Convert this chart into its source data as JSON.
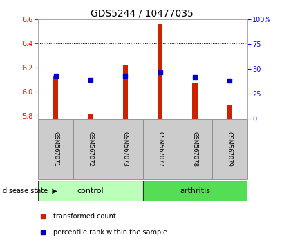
{
  "title": "GDS5244 / 10477035",
  "samples": [
    "GSM567071",
    "GSM567072",
    "GSM567073",
    "GSM567077",
    "GSM567078",
    "GSM567079"
  ],
  "bar_values": [
    6.13,
    5.81,
    6.22,
    6.56,
    6.07,
    5.89
  ],
  "bar_base": 5.78,
  "blue_dot_values": [
    6.13,
    6.1,
    6.13,
    6.16,
    6.12,
    6.09
  ],
  "groups": [
    {
      "label": "control",
      "n": 3,
      "color": "#bbffbb"
    },
    {
      "label": "arthritis",
      "n": 3,
      "color": "#55dd55"
    }
  ],
  "ylim_left": [
    5.78,
    6.6
  ],
  "ylim_right": [
    0,
    100
  ],
  "yticks_left": [
    5.8,
    6.0,
    6.2,
    6.4,
    6.6
  ],
  "yticks_right": [
    0,
    25,
    50,
    75,
    100
  ],
  "bar_color": "#cc2200",
  "dot_color": "#0000cc",
  "bar_width": 0.15,
  "plot_bg": "#ffffff",
  "sample_box_color": "#cccccc",
  "legend_bar_label": "transformed count",
  "legend_dot_label": "percentile rank within the sample",
  "title_fontsize": 10,
  "tick_fontsize": 7,
  "sample_fontsize": 6,
  "group_fontsize": 8,
  "legend_fontsize": 7
}
